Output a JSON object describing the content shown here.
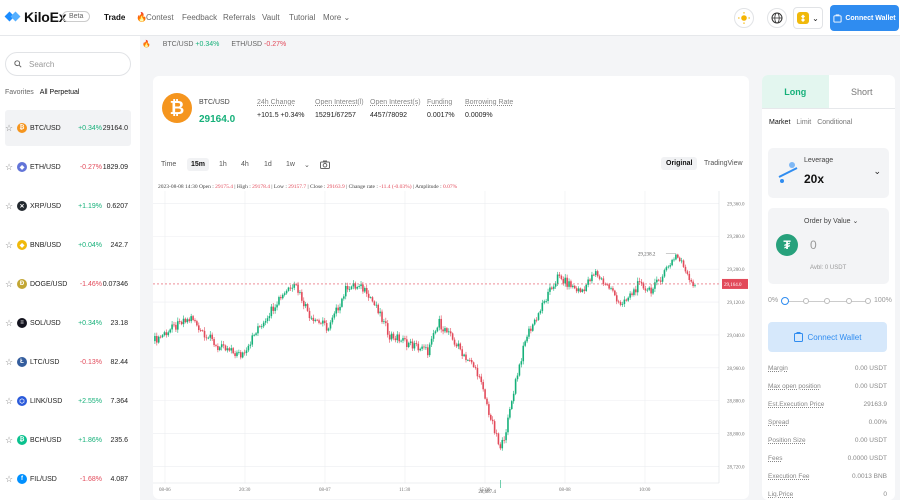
{
  "nav": {
    "logo": "KiloEx",
    "badge": "Beta",
    "items": [
      "Trade",
      "Contest",
      "Feedback",
      "Referrals",
      "Vault",
      "Tutorial",
      "More"
    ],
    "connect": "Connect Wallet"
  },
  "tickerbar": [
    {
      "pair": "BTC/USD",
      "change": "+0.34%",
      "dir": "pos"
    },
    {
      "pair": "ETH/USD",
      "change": "-0.27%",
      "dir": "neg"
    }
  ],
  "sidebar": {
    "search_placeholder": "Search",
    "tabs": [
      "Favorites",
      "All Perpetual"
    ],
    "markets": [
      {
        "pair": "BTC/USD",
        "change": "+0.34%",
        "price": "29164.0",
        "dir": "pos",
        "color": "#f5951e",
        "glyph": "₿",
        "selected": true
      },
      {
        "pair": "ETH/USD",
        "change": "-0.27%",
        "price": "1829.09",
        "dir": "neg",
        "color": "#6274d8",
        "glyph": "◆"
      },
      {
        "pair": "XRP/USD",
        "change": "+1.19%",
        "price": "0.6207",
        "dir": "pos",
        "color": "#23292f",
        "glyph": "✕"
      },
      {
        "pair": "BNB/USD",
        "change": "+0.04%",
        "price": "242.7",
        "dir": "pos",
        "color": "#f0b90b",
        "glyph": "◆"
      },
      {
        "pair": "DOGE/USD",
        "change": "-1.46%",
        "price": "0.07346",
        "dir": "neg",
        "color": "#c2a633",
        "glyph": "Ð"
      },
      {
        "pair": "SOL/USD",
        "change": "+0.34%",
        "price": "23.18",
        "dir": "pos",
        "color": "#14141f",
        "glyph": "≡"
      },
      {
        "pair": "LTC/USD",
        "change": "-0.13%",
        "price": "82.44",
        "dir": "neg",
        "color": "#345d9d",
        "glyph": "Ł"
      },
      {
        "pair": "LINK/USD",
        "change": "+2.55%",
        "price": "7.364",
        "dir": "pos",
        "color": "#2a5ada",
        "glyph": "⬡"
      },
      {
        "pair": "BCH/USD",
        "change": "+1.86%",
        "price": "235.6",
        "dir": "pos",
        "color": "#0ac18e",
        "glyph": "₿"
      },
      {
        "pair": "FIL/USD",
        "change": "-1.68%",
        "price": "4.087",
        "dir": "neg",
        "color": "#0090ff",
        "glyph": "f"
      }
    ]
  },
  "header": {
    "symbol": "BTC/USD",
    "price": "29164.0",
    "stats": [
      {
        "label": "24h Change",
        "value": "+101.5 +0.34%",
        "dir": "pos"
      },
      {
        "label": "Open Interest(l)",
        "value": "15291/67257",
        "dir": ""
      },
      {
        "label": "Open Interest(s)",
        "value": "4457/78092",
        "dir": ""
      },
      {
        "label": "Funding",
        "value": "0.0017%",
        "dir": "pos"
      },
      {
        "label": "Borrowing Rate",
        "value": "0.0009%",
        "dir": "pos"
      }
    ]
  },
  "timeframes": [
    "Time",
    "15m",
    "1h",
    "4h",
    "1d",
    "1w"
  ],
  "views": [
    "Original",
    "TradingView"
  ],
  "ohlc": {
    "date": "2023-08-08 14:30",
    "open_label": "Open",
    "open": "29175.4",
    "high_label": "High",
    "high": "29178.4",
    "low_label": "Low",
    "low": "29157.7",
    "close_label": "Close",
    "close": "29163.9",
    "change_label": "Change rate",
    "change": "-11.4 (-0.03%)",
    "amp_label": "Amplitude",
    "amp": "0.07%"
  },
  "chart_data": {
    "type": "candlestick",
    "x_ticks": [
      "08-06",
      "20:30",
      "08-07",
      "11:30",
      "15:00",
      "08-08",
      "10:00"
    ],
    "y_ticks": [
      "29,360.0",
      "29,280.0",
      "29,200.0",
      "29,120.0",
      "29,040.0",
      "28,960.0",
      "28,880.0",
      "28,800.0",
      "28,720.0"
    ],
    "ylim": [
      28680,
      29390
    ],
    "current_price": "29,164.0",
    "current_value": 29164,
    "high_label": "29,238.2",
    "high_value": 29238.2,
    "low_label": "28,687.4",
    "low_value": 28687.4
  },
  "order": {
    "tabs": [
      "Long",
      "Short"
    ],
    "types": [
      "Market",
      "Limit",
      "Conditional"
    ],
    "leverage_label": "Leverage",
    "leverage": "20x",
    "order_by": "Order by Value",
    "amount": "0",
    "avbl": "Avbl: 0 USDT",
    "slider": [
      "0%",
      "100%"
    ],
    "connect": "Connect Wallet",
    "info": [
      {
        "k": "Margin",
        "v": "0.00 USDT"
      },
      {
        "k": "Max open position",
        "v": "0.00 USDT"
      },
      {
        "k": "Est.Execution Price",
        "v": "29163.9"
      },
      {
        "k": "Spread",
        "v": "0.00%"
      },
      {
        "k": "Position Size",
        "v": "0.00 USDT"
      },
      {
        "k": "Fees",
        "v": "0.0000 USDT"
      },
      {
        "k": "Execution Fee",
        "v": "0.0013 BNB"
      },
      {
        "k": "Liq.Price",
        "v": "0"
      }
    ]
  }
}
